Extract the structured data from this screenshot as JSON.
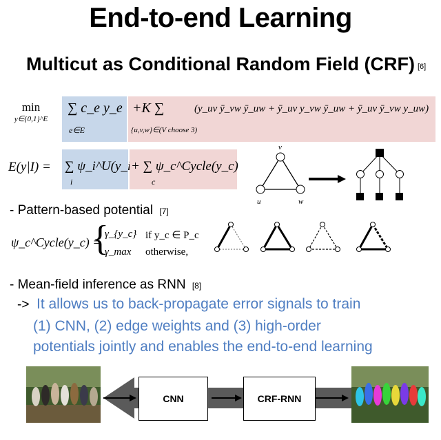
{
  "slide": {
    "title": "End-to-end Learning",
    "subtitle": "Multicut as Conditional Random Field (CRF)",
    "subtitle_ref": "[6]"
  },
  "equations": {
    "objective_min": "min",
    "objective_domain": "y∈{0,1}^E",
    "unary_term": "∑ c_e y_e",
    "unary_domain": "e∈E",
    "plus_k": "+K ∑",
    "pairwise_domain": "{u,v,w}∈(V choose 3)",
    "cycle_terms": "(y_uv ȳ_vw ȳ_uw + ȳ_uv y_vw ȳ_uw + ȳ_uv ȳ_vw y_uw)",
    "energy_lhs": "E(y|I) =",
    "energy_unary": "∑ ψ_i^U(y_i)",
    "energy_unary_sub": "i",
    "energy_cycle": "+ ∑ ψ_c^Cycle(y_c)",
    "energy_cycle_sub": "c",
    "potential_lhs": "ψ_c^Cycle(y_c) =",
    "case1_value": "γ_{y_c}",
    "case1_cond": "if y_c ∈ P_c",
    "case2_value": "γ_max",
    "case2_cond": "otherwise,"
  },
  "graph_labels": {
    "v": "v",
    "u": "u",
    "w": "w"
  },
  "bullets": {
    "pattern": "- Pattern-based potential",
    "pattern_ref": "[7]",
    "meanfield": "- Mean-field inference as RNN",
    "meanfield_ref": "[8]",
    "arrow": "->",
    "line1": "It allows us to back-propagate error signals to train",
    "line2": "(1) CNN,  (2) edge weights and (3) high-order",
    "line3": "potentials jointly and enables the end-to-end learning"
  },
  "pipeline": {
    "cnn": "CNN",
    "crf_rnn": "CRF-RNN"
  },
  "colors": {
    "blue_box": "#c7d7ea",
    "pink_box": "#f1d6d5",
    "accent_text": "#4f7ec2",
    "pipeline_band": "#5a5a5a"
  }
}
